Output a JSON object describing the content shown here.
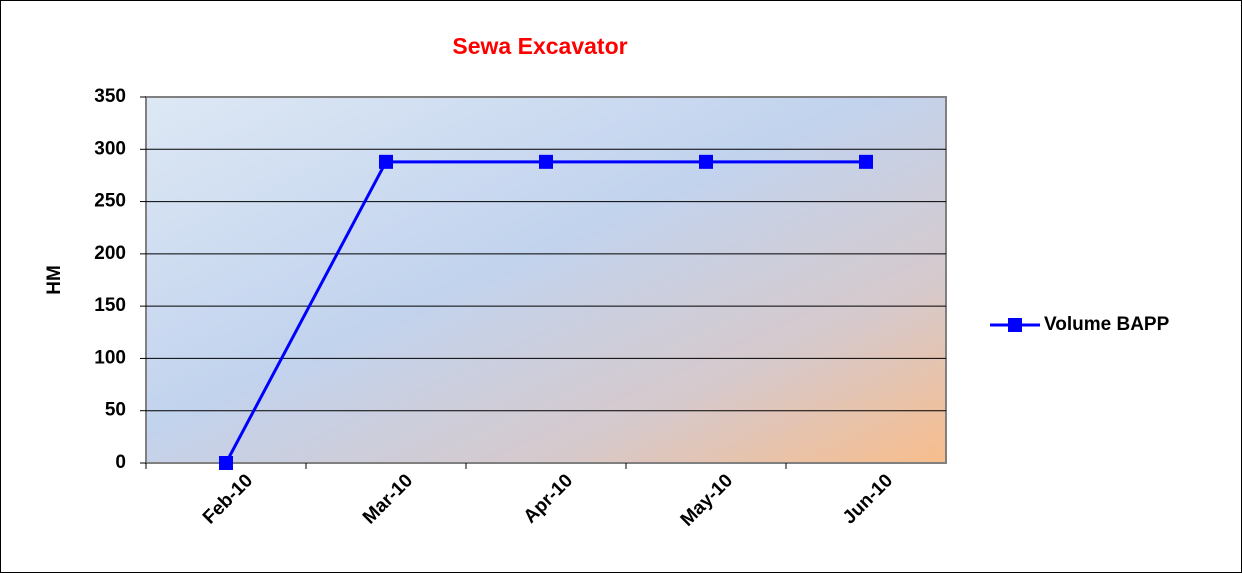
{
  "chart_data": {
    "type": "line",
    "title": "Sewa Excavator",
    "y_label": "HM",
    "categories": [
      "Feb-10",
      "Mar-10",
      "Apr-10",
      "May-10",
      "Jun-10"
    ],
    "series": [
      {
        "name": "Volume BAPP",
        "color": "#0000ff",
        "values": [
          0,
          288,
          288,
          288,
          288
        ]
      }
    ],
    "ylim": [
      0,
      350
    ],
    "yticks": [
      0,
      50,
      100,
      150,
      200,
      250,
      300,
      350
    ],
    "grid": true,
    "legend": "right"
  }
}
